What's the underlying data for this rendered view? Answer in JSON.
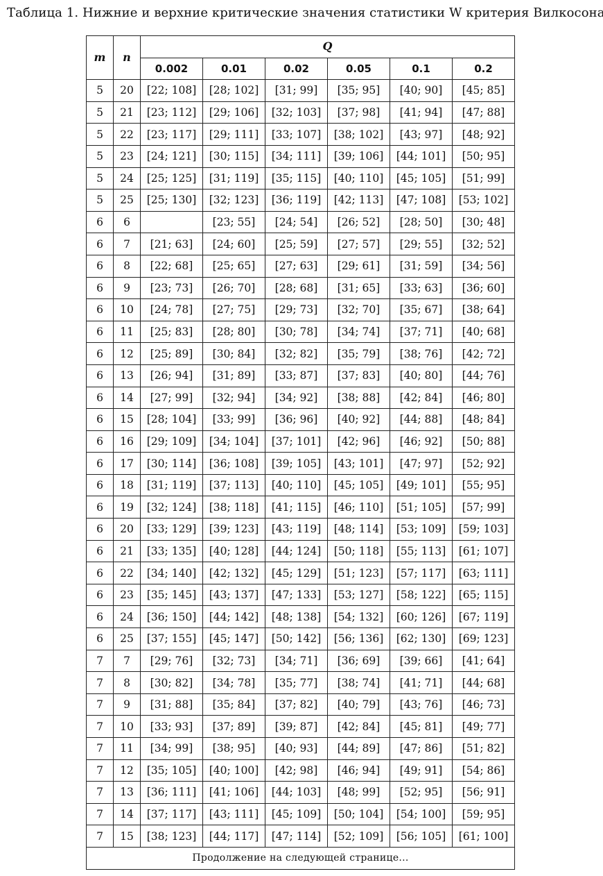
{
  "caption": "Таблица 1. Нижние и верхние критические значения статистики W критерия Вилкосона",
  "table": {
    "col_m": "m",
    "col_n": "n",
    "col_q": "Q",
    "q_values": [
      "0.002",
      "0.01",
      "0.02",
      "0.05",
      "0.1",
      "0.2"
    ],
    "rows": [
      [
        "5",
        "20",
        "[22; 108]",
        "[28; 102]",
        "[31; 99]",
        "[35; 95]",
        "[40; 90]",
        "[45; 85]"
      ],
      [
        "5",
        "21",
        "[23; 112]",
        "[29; 106]",
        "[32; 103]",
        "[37; 98]",
        "[41; 94]",
        "[47; 88]"
      ],
      [
        "5",
        "22",
        "[23; 117]",
        "[29; 111]",
        "[33; 107]",
        "[38; 102]",
        "[43; 97]",
        "[48; 92]"
      ],
      [
        "5",
        "23",
        "[24; 121]",
        "[30; 115]",
        "[34; 111]",
        "[39; 106]",
        "[44; 101]",
        "[50; 95]"
      ],
      [
        "5",
        "24",
        "[25; 125]",
        "[31; 119]",
        "[35; 115]",
        "[40; 110]",
        "[45; 105]",
        "[51; 99]"
      ],
      [
        "5",
        "25",
        "[25; 130]",
        "[32; 123]",
        "[36; 119]",
        "[42; 113]",
        "[47; 108]",
        "[53; 102]"
      ],
      [
        "6",
        "6",
        "",
        "[23; 55]",
        "[24; 54]",
        "[26; 52]",
        "[28; 50]",
        "[30; 48]"
      ],
      [
        "6",
        "7",
        "[21; 63]",
        "[24; 60]",
        "[25; 59]",
        "[27; 57]",
        "[29; 55]",
        "[32; 52]"
      ],
      [
        "6",
        "8",
        "[22; 68]",
        "[25; 65]",
        "[27; 63]",
        "[29; 61]",
        "[31; 59]",
        "[34; 56]"
      ],
      [
        "6",
        "9",
        "[23; 73]",
        "[26; 70]",
        "[28; 68]",
        "[31; 65]",
        "[33; 63]",
        "[36; 60]"
      ],
      [
        "6",
        "10",
        "[24; 78]",
        "[27; 75]",
        "[29; 73]",
        "[32; 70]",
        "[35; 67]",
        "[38; 64]"
      ],
      [
        "6",
        "11",
        "[25; 83]",
        "[28; 80]",
        "[30; 78]",
        "[34; 74]",
        "[37; 71]",
        "[40; 68]"
      ],
      [
        "6",
        "12",
        "[25; 89]",
        "[30; 84]",
        "[32; 82]",
        "[35; 79]",
        "[38; 76]",
        "[42; 72]"
      ],
      [
        "6",
        "13",
        "[26; 94]",
        "[31; 89]",
        "[33; 87]",
        "[37; 83]",
        "[40; 80]",
        "[44; 76]"
      ],
      [
        "6",
        "14",
        "[27; 99]",
        "[32; 94]",
        "[34; 92]",
        "[38; 88]",
        "[42; 84]",
        "[46; 80]"
      ],
      [
        "6",
        "15",
        "[28; 104]",
        "[33; 99]",
        "[36; 96]",
        "[40; 92]",
        "[44; 88]",
        "[48; 84]"
      ],
      [
        "6",
        "16",
        "[29; 109]",
        "[34; 104]",
        "[37; 101]",
        "[42; 96]",
        "[46; 92]",
        "[50; 88]"
      ],
      [
        "6",
        "17",
        "[30; 114]",
        "[36; 108]",
        "[39; 105]",
        "[43; 101]",
        "[47; 97]",
        "[52; 92]"
      ],
      [
        "6",
        "18",
        "[31; 119]",
        "[37; 113]",
        "[40; 110]",
        "[45; 105]",
        "[49; 101]",
        "[55; 95]"
      ],
      [
        "6",
        "19",
        "[32; 124]",
        "[38; 118]",
        "[41; 115]",
        "[46; 110]",
        "[51; 105]",
        "[57; 99]"
      ],
      [
        "6",
        "20",
        "[33; 129]",
        "[39; 123]",
        "[43; 119]",
        "[48; 114]",
        "[53; 109]",
        "[59; 103]"
      ],
      [
        "6",
        "21",
        "[33; 135]",
        "[40; 128]",
        "[44; 124]",
        "[50; 118]",
        "[55; 113]",
        "[61; 107]"
      ],
      [
        "6",
        "22",
        "[34; 140]",
        "[42; 132]",
        "[45; 129]",
        "[51; 123]",
        "[57; 117]",
        "[63; 111]"
      ],
      [
        "6",
        "23",
        "[35; 145]",
        "[43; 137]",
        "[47; 133]",
        "[53; 127]",
        "[58; 122]",
        "[65; 115]"
      ],
      [
        "6",
        "24",
        "[36; 150]",
        "[44; 142]",
        "[48; 138]",
        "[54; 132]",
        "[60; 126]",
        "[67; 119]"
      ],
      [
        "6",
        "25",
        "[37; 155]",
        "[45; 147]",
        "[50; 142]",
        "[56; 136]",
        "[62; 130]",
        "[69; 123]"
      ],
      [
        "7",
        "7",
        "[29; 76]",
        "[32; 73]",
        "[34; 71]",
        "[36; 69]",
        "[39; 66]",
        "[41; 64]"
      ],
      [
        "7",
        "8",
        "[30; 82]",
        "[34; 78]",
        "[35; 77]",
        "[38; 74]",
        "[41; 71]",
        "[44; 68]"
      ],
      [
        "7",
        "9",
        "[31; 88]",
        "[35; 84]",
        "[37; 82]",
        "[40; 79]",
        "[43; 76]",
        "[46; 73]"
      ],
      [
        "7",
        "10",
        "[33; 93]",
        "[37; 89]",
        "[39; 87]",
        "[42; 84]",
        "[45; 81]",
        "[49; 77]"
      ],
      [
        "7",
        "11",
        "[34; 99]",
        "[38; 95]",
        "[40; 93]",
        "[44; 89]",
        "[47; 86]",
        "[51; 82]"
      ],
      [
        "7",
        "12",
        "[35; 105]",
        "[40; 100]",
        "[42; 98]",
        "[46; 94]",
        "[49; 91]",
        "[54; 86]"
      ],
      [
        "7",
        "13",
        "[36; 111]",
        "[41; 106]",
        "[44; 103]",
        "[48; 99]",
        "[52; 95]",
        "[56; 91]"
      ],
      [
        "7",
        "14",
        "[37; 117]",
        "[43; 111]",
        "[45; 109]",
        "[50; 104]",
        "[54; 100]",
        "[59; 95]"
      ],
      [
        "7",
        "15",
        "[38; 123]",
        "[44; 117]",
        "[47; 114]",
        "[52; 109]",
        "[56; 105]",
        "[61; 100]"
      ]
    ],
    "continued": "Продолжение на следующей странице..."
  }
}
